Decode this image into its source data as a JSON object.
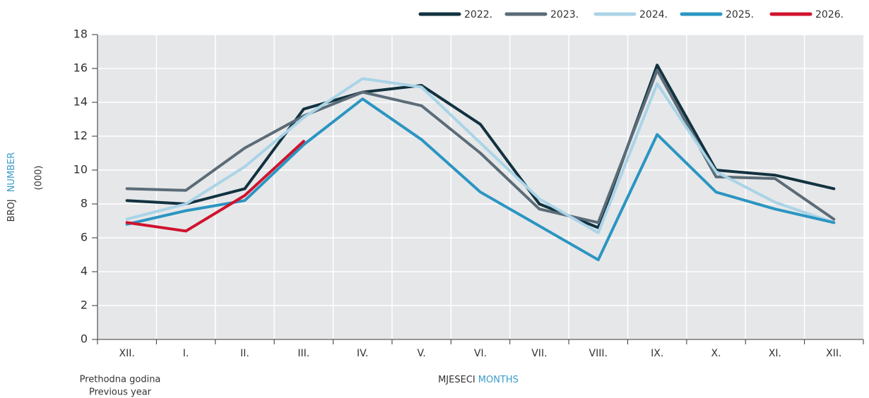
{
  "chart_data": {
    "type": "line",
    "categories": [
      "XII.",
      "I.",
      "II.",
      "III.",
      "IV.",
      "V.",
      "VI.",
      "VII.",
      "VIII.",
      "IX.",
      "X.",
      "XI.",
      "XII."
    ],
    "series": [
      {
        "name": "2022.",
        "color": "#12323f",
        "values": [
          8.2,
          8.0,
          8.9,
          13.6,
          14.6,
          15.0,
          12.7,
          8.0,
          6.6,
          16.2,
          10.0,
          9.7,
          8.9
        ]
      },
      {
        "name": "2023.",
        "color": "#5b6c78",
        "values": [
          8.9,
          8.8,
          11.3,
          13.2,
          14.6,
          13.8,
          11.0,
          7.7,
          6.9,
          15.9,
          9.6,
          9.5,
          7.1
        ]
      },
      {
        "name": "2024.",
        "color": "#aad4e7",
        "values": [
          7.1,
          8.0,
          10.2,
          13.1,
          15.4,
          14.9,
          11.6,
          8.3,
          6.3,
          15.1,
          9.9,
          8.1,
          6.9
        ]
      },
      {
        "name": "2025.",
        "color": "#2b95c2",
        "values": [
          6.8,
          7.6,
          8.2,
          11.5,
          14.2,
          11.8,
          8.7,
          6.7,
          4.7,
          12.1,
          8.7,
          7.7,
          6.9
        ]
      },
      {
        "name": "2026.",
        "color": "#d0132d",
        "values": [
          6.9,
          6.4,
          8.5,
          11.7,
          null,
          null,
          null,
          null,
          null,
          null,
          null,
          null,
          null
        ]
      }
    ],
    "ylim": [
      0,
      18
    ],
    "yticks": [
      0,
      2,
      4,
      6,
      8,
      10,
      12,
      14,
      16,
      18
    ],
    "grid": true,
    "legend": "top-right",
    "y_label": [
      "BROJ",
      "NUMBER"
    ],
    "y_unit": "(000)",
    "x_label": [
      "MJESECI",
      "MONTHS"
    ],
    "note": [
      "Prethodna godina",
      "Previous year"
    ],
    "label_colors": [
      "#333333",
      "#3a9cc8"
    ]
  }
}
